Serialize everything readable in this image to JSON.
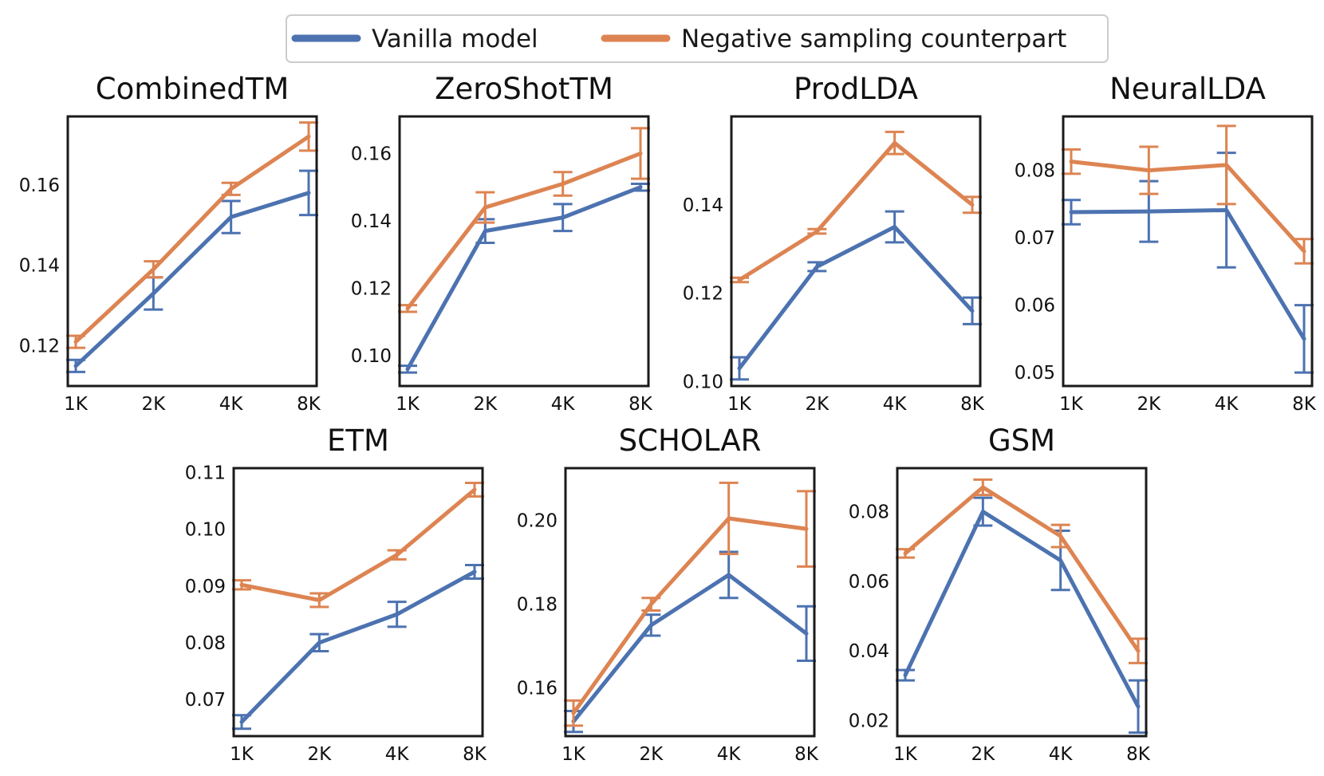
{
  "legend": {
    "vanilla_label": "Vanilla model",
    "negative_label": "Negative sampling counterpart"
  },
  "colors": {
    "vanilla": "#4c72b0",
    "negative": "#dd8452"
  },
  "chart_data": [
    {
      "type": "line",
      "title": "CombinedTM",
      "categories": [
        "1K",
        "2K",
        "4K",
        "8K"
      ],
      "ylim": [
        0.11,
        0.177
      ],
      "yticks": [
        "0.12",
        "0.14",
        "0.16"
      ],
      "series": [
        {
          "name": "Vanilla model",
          "values": [
            0.115,
            0.133,
            0.152,
            0.158
          ],
          "err": [
            0.0015,
            0.004,
            0.004,
            0.0055
          ]
        },
        {
          "name": "Negative sampling counterpart",
          "values": [
            0.121,
            0.139,
            0.159,
            0.172
          ],
          "err": [
            0.0015,
            0.002,
            0.0015,
            0.0035
          ]
        }
      ]
    },
    {
      "type": "line",
      "title": "ZeroShotTM",
      "categories": [
        "1K",
        "2K",
        "4K",
        "8K"
      ],
      "ylim": [
        0.091,
        0.171
      ],
      "yticks": [
        "0.10",
        "0.12",
        "0.14",
        "0.16"
      ],
      "series": [
        {
          "name": "Vanilla model",
          "values": [
            0.096,
            0.137,
            0.141,
            0.15
          ],
          "err": [
            0.001,
            0.0035,
            0.004,
            0.001
          ]
        },
        {
          "name": "Negative sampling counterpart",
          "values": [
            0.114,
            0.144,
            0.151,
            0.16
          ],
          "err": [
            0.001,
            0.0045,
            0.0035,
            0.0075
          ]
        }
      ]
    },
    {
      "type": "line",
      "title": "ProdLDA",
      "categories": [
        "1K",
        "2K",
        "4K",
        "8K"
      ],
      "ylim": [
        0.099,
        0.16
      ],
      "yticks": [
        "0.10",
        "0.12",
        "0.14"
      ],
      "series": [
        {
          "name": "Vanilla model",
          "values": [
            0.103,
            0.126,
            0.135,
            0.116
          ],
          "err": [
            0.0025,
            0.001,
            0.0035,
            0.003
          ]
        },
        {
          "name": "Negative sampling counterpart",
          "values": [
            0.123,
            0.134,
            0.154,
            0.14
          ],
          "err": [
            0.0005,
            0.0005,
            0.0025,
            0.0018
          ]
        }
      ]
    },
    {
      "type": "line",
      "title": "NeuralLDA",
      "categories": [
        "1K",
        "2K",
        "4K",
        "8K"
      ],
      "ylim": [
        0.048,
        0.088
      ],
      "yticks": [
        "0.05",
        "0.06",
        "0.07",
        "0.08"
      ],
      "series": [
        {
          "name": "Vanilla model",
          "values": [
            0.0738,
            0.0739,
            0.0741,
            0.055
          ],
          "err": [
            0.0018,
            0.0045,
            0.0085,
            0.005
          ]
        },
        {
          "name": "Negative sampling counterpart",
          "values": [
            0.0813,
            0.08,
            0.0808,
            0.068
          ],
          "err": [
            0.0018,
            0.0035,
            0.0058,
            0.0018
          ]
        }
      ]
    },
    {
      "type": "line",
      "title": "ETM",
      "categories": [
        "1K",
        "2K",
        "4K",
        "8K"
      ],
      "ylim": [
        0.0635,
        0.1108
      ],
      "yticks": [
        "0.07",
        "0.08",
        "0.09",
        "0.10",
        "0.11"
      ],
      "series": [
        {
          "name": "Vanilla model",
          "values": [
            0.066,
            0.08,
            0.085,
            0.0925
          ],
          "err": [
            0.0012,
            0.0015,
            0.0022,
            0.0012
          ]
        },
        {
          "name": "Negative sampling counterpart",
          "values": [
            0.0902,
            0.0875,
            0.0955,
            0.107
          ],
          "err": [
            0.0008,
            0.0012,
            0.0008,
            0.0012
          ]
        }
      ]
    },
    {
      "type": "line",
      "title": "SCHOLAR",
      "categories": [
        "1K",
        "2K",
        "4K",
        "8K"
      ],
      "ylim": [
        0.1485,
        0.2125
      ],
      "yticks": [
        "0.16",
        "0.18",
        "0.20"
      ],
      "series": [
        {
          "name": "Vanilla model",
          "values": [
            0.152,
            0.175,
            0.187,
            0.173
          ],
          "err": [
            0.0025,
            0.0025,
            0.0055,
            0.0065
          ]
        },
        {
          "name": "Negative sampling counterpart",
          "values": [
            0.154,
            0.18,
            0.2005,
            0.198
          ],
          "err": [
            0.003,
            0.0015,
            0.0085,
            0.009
          ]
        }
      ]
    },
    {
      "type": "line",
      "title": "GSM",
      "categories": [
        "1K",
        "2K",
        "4K",
        "8K"
      ],
      "ylim": [
        0.0155,
        0.0925
      ],
      "yticks": [
        "0.02",
        "0.04",
        "0.06",
        "0.08"
      ],
      "series": [
        {
          "name": "Vanilla model",
          "values": [
            0.033,
            0.08,
            0.066,
            0.024
          ],
          "err": [
            0.0015,
            0.004,
            0.0085,
            0.0075
          ]
        },
        {
          "name": "Negative sampling counterpart",
          "values": [
            0.068,
            0.087,
            0.073,
            0.04
          ],
          "err": [
            0.0012,
            0.0022,
            0.0032,
            0.0035
          ]
        }
      ]
    }
  ]
}
